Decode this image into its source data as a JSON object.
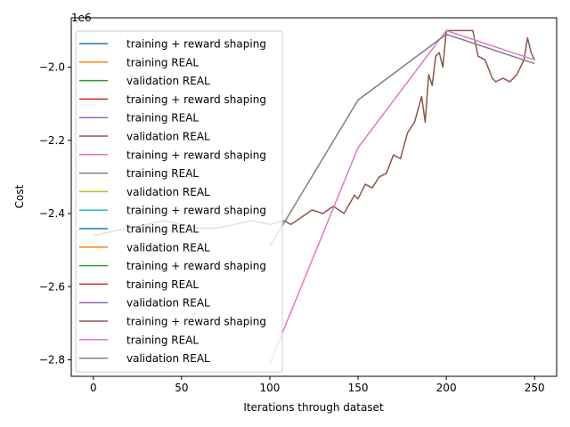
{
  "chart_data": {
    "type": "line",
    "title": "",
    "xlabel": "Iterations through dataset",
    "ylabel": "Cost",
    "y_offset_text": "1e6",
    "xlim": [
      -12.5,
      262.5
    ],
    "ylim": [
      -2.845,
      -1.865
    ],
    "y_scale": 1000000,
    "grid": false,
    "legend_position": "upper left",
    "x_ticks": [
      0,
      50,
      100,
      150,
      200,
      250
    ],
    "x_tick_labels": [
      "0",
      "50",
      "100",
      "150",
      "200",
      "250"
    ],
    "y_ticks": [
      -2.8,
      -2.6,
      -2.4,
      -2.2,
      -2.0
    ],
    "y_tick_labels": [
      "−2.8",
      "−2.6",
      "−2.4",
      "−2.2",
      "−2.0"
    ],
    "series": [
      {
        "name": "training + reward shaping",
        "color": "#1f77b4",
        "x": [],
        "y": []
      },
      {
        "name": "training REAL",
        "color": "#ff7f0e",
        "x": [],
        "y": []
      },
      {
        "name": "validation REAL",
        "color": "#2ca02c",
        "x": [],
        "y": []
      },
      {
        "name": "training + reward shaping",
        "color": "#d62728",
        "x": [],
        "y": []
      },
      {
        "name": "training REAL",
        "color": "#9467bd",
        "x": [],
        "y": []
      },
      {
        "name": "validation REAL",
        "color": "#8c564b",
        "x": [],
        "y": []
      },
      {
        "name": "training + reward shaping",
        "color": "#e377c2",
        "x": [],
        "y": []
      },
      {
        "name": "training REAL",
        "color": "#7f7f7f",
        "x": [],
        "y": []
      },
      {
        "name": "validation REAL",
        "color": "#bcbd22",
        "x": [],
        "y": []
      },
      {
        "name": "training + reward shaping",
        "color": "#17becf",
        "x": [],
        "y": []
      },
      {
        "name": "training REAL",
        "color": "#1f77b4",
        "x": [],
        "y": []
      },
      {
        "name": "validation REAL",
        "color": "#ff7f0e",
        "x": [],
        "y": []
      },
      {
        "name": "training + reward shaping",
        "color": "#2ca02c",
        "x": [],
        "y": []
      },
      {
        "name": "training REAL",
        "color": "#d62728",
        "x": [],
        "y": []
      },
      {
        "name": "validation REAL",
        "color": "#9467bd",
        "x": [],
        "y": []
      },
      {
        "name": "training + reward shaping",
        "color": "#8c564b",
        "x": [
          0,
          10,
          20,
          30,
          40,
          50,
          60,
          70,
          80,
          90,
          100,
          108,
          112,
          118,
          124,
          130,
          136,
          142,
          148,
          150,
          154,
          158,
          162,
          166,
          170,
          174,
          178,
          182,
          186,
          188,
          190,
          192,
          194,
          196,
          198,
          200,
          205,
          210,
          215,
          218,
          222,
          226,
          228,
          232,
          236,
          240,
          244,
          246,
          248,
          250
        ],
        "y": [
          -2.46,
          -2.45,
          -2.44,
          -2.43,
          -2.42,
          -2.43,
          -2.44,
          -2.44,
          -2.43,
          -2.42,
          -2.43,
          -2.42,
          -2.43,
          -2.41,
          -2.39,
          -2.4,
          -2.38,
          -2.4,
          -2.35,
          -2.36,
          -2.32,
          -2.33,
          -2.3,
          -2.29,
          -2.24,
          -2.25,
          -2.18,
          -2.15,
          -2.08,
          -2.15,
          -2.02,
          -2.05,
          -1.97,
          -1.96,
          -2.0,
          -1.9,
          -1.9,
          -1.9,
          -1.9,
          -1.97,
          -1.98,
          -2.03,
          -2.04,
          -2.03,
          -2.04,
          -2.02,
          -1.98,
          -1.92,
          -1.96,
          -1.98
        ]
      },
      {
        "name": "training REAL",
        "color": "#e377c2",
        "x": [
          100,
          150,
          200,
          250
        ],
        "y": [
          -2.81,
          -2.22,
          -1.9,
          -1.98
        ]
      },
      {
        "name": "validation REAL",
        "color": "#7f7f7f",
        "x": [
          100,
          150,
          200,
          250
        ],
        "y": [
          -2.49,
          -2.09,
          -1.91,
          -1.99
        ]
      }
    ]
  }
}
